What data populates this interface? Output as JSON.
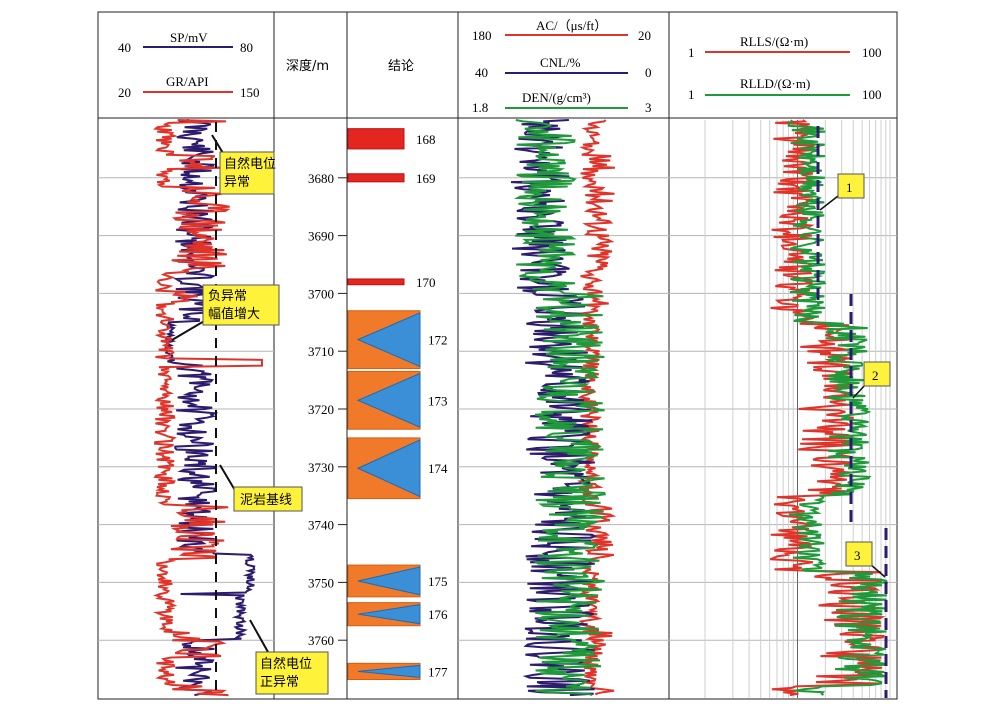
{
  "chart_data": {
    "type": "well-log",
    "depth_axis": {
      "label": "深度/m",
      "range": [
        3670,
        3770
      ],
      "ticks": [
        3680,
        3690,
        3700,
        3710,
        3720,
        3730,
        3740,
        3750,
        3760
      ]
    },
    "tracks": [
      {
        "name": "track1",
        "curves": [
          {
            "name": "SP/mV",
            "scale": [
              40,
              80
            ],
            "color": "#2d1b6e"
          },
          {
            "name": "GR/API",
            "scale": [
              20,
              150
            ],
            "color": "#e0342b"
          }
        ],
        "baseline_label": "泥岩基线"
      },
      {
        "name": "depth",
        "header": "深度/m"
      },
      {
        "name": "conclusion",
        "header": "结论"
      },
      {
        "name": "track3",
        "curves": [
          {
            "name": "AC/（μs/ft）",
            "scale": [
              180,
              20
            ],
            "color": "#e0342b"
          },
          {
            "name": "CNL/%",
            "scale": [
              40,
              0
            ],
            "color": "#2d1b6e"
          },
          {
            "name": "DEN/(g/cm³)",
            "scale": [
              1.8,
              3
            ],
            "color": "#1f9a3a"
          }
        ]
      },
      {
        "name": "track4",
        "curves": [
          {
            "name": "RLLS/(Ω·m)",
            "scale": [
              1,
              100
            ],
            "color": "#e0342b"
          },
          {
            "name": "RLLD/(Ω·m)",
            "scale": [
              1,
              100
            ],
            "color": "#1f9a3a"
          }
        ]
      }
    ],
    "layers": [
      {
        "id": "168",
        "top": 3671.5,
        "bottom": 3675.0,
        "kind": "bar"
      },
      {
        "id": "169",
        "top": 3679.3,
        "bottom": 3680.7,
        "kind": "bar"
      },
      {
        "id": "170",
        "top": 3697.5,
        "bottom": 3698.5,
        "kind": "bar"
      },
      {
        "id": "172",
        "top": 3703.0,
        "bottom": 3713.0,
        "kind": "triangle"
      },
      {
        "id": "173",
        "top": 3713.5,
        "bottom": 3723.5,
        "kind": "triangle"
      },
      {
        "id": "174",
        "top": 3725.0,
        "bottom": 3735.5,
        "kind": "triangle"
      },
      {
        "id": "175",
        "top": 3747.0,
        "bottom": 3752.5,
        "kind": "triangle"
      },
      {
        "id": "176",
        "top": 3753.5,
        "bottom": 3757.5,
        "kind": "triangle"
      },
      {
        "id": "177",
        "top": 3764.0,
        "bottom": 3766.8,
        "kind": "triangle"
      }
    ],
    "annotations": {
      "sp_anomaly": "自然电位异常",
      "negative_anomaly": "负异常幅值增大",
      "mudstone_baseline": "泥岩基线",
      "positive_anomaly": "自然电位正异常"
    },
    "markers": [
      "1",
      "2",
      "3"
    ]
  }
}
